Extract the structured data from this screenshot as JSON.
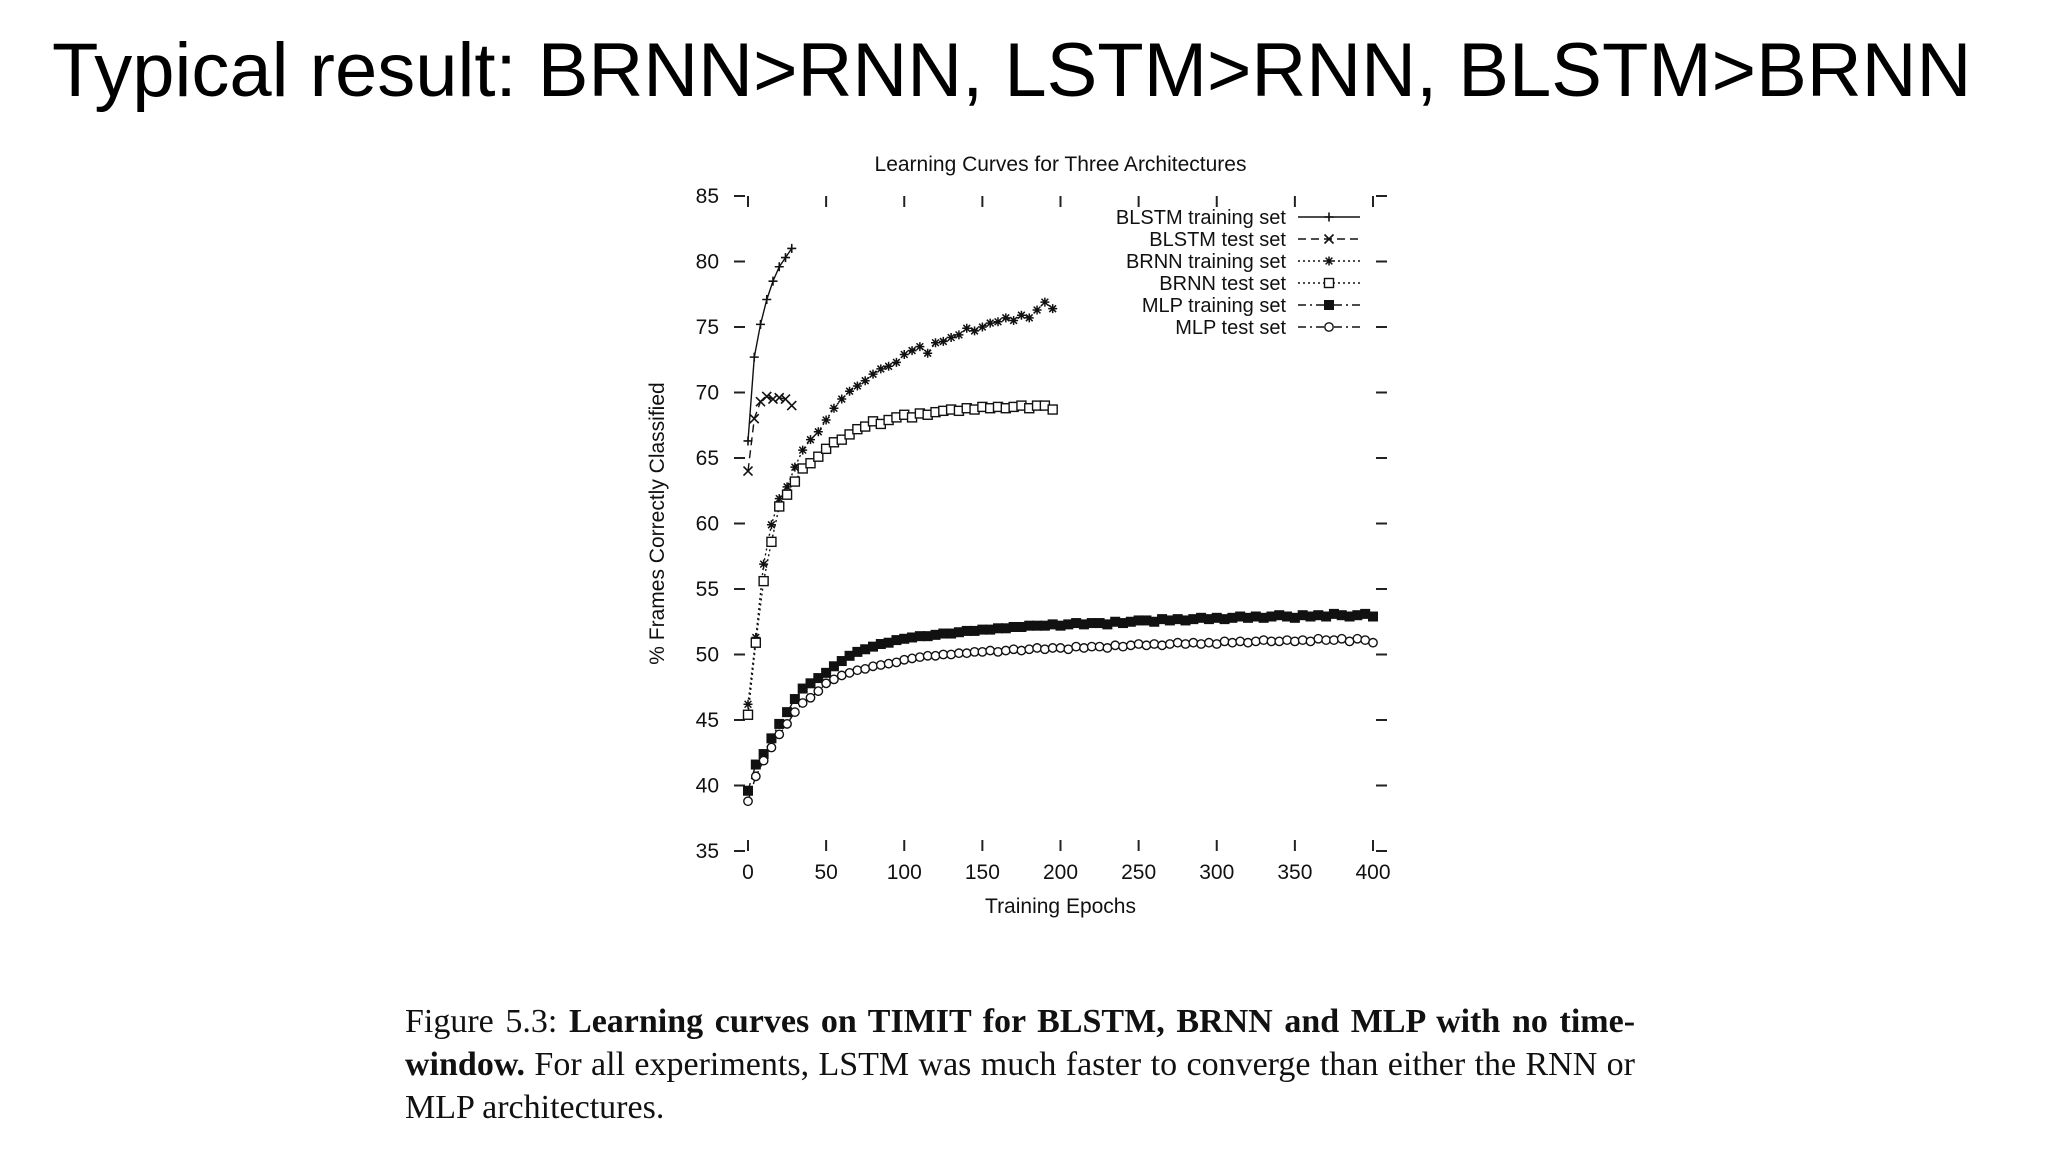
{
  "slide": {
    "title": "Typical result: BRNN>RNN, LSTM>RNN, BLSTM>BRNN"
  },
  "caption": {
    "figure_label": "Figure 5.3:",
    "bold_text": "Learning curves on TIMIT for BLSTM, BRNN and MLP with no time-window.",
    "body_text": "For all experiments, LSTM was much faster to converge than either the RNN or MLP architectures."
  },
  "chart_data": {
    "type": "line",
    "title": "Learning Curves for Three Architectures",
    "xlabel": "Training Epochs",
    "ylabel": "% Frames Correctly Classified",
    "xlim": [
      0,
      400
    ],
    "ylim": [
      35,
      85
    ],
    "xticks": [
      0,
      50,
      100,
      150,
      200,
      250,
      300,
      350,
      400
    ],
    "yticks": [
      35,
      40,
      45,
      50,
      55,
      60,
      65,
      70,
      75,
      80,
      85
    ],
    "grid": false,
    "legend_position": "top-right",
    "series": [
      {
        "name": "BLSTM training set",
        "marker": "plus",
        "line": "solid",
        "color": "#111111",
        "x": [
          0,
          4,
          8,
          12,
          16,
          20,
          24,
          28
        ],
        "y": [
          66.3,
          72.7,
          75.2,
          77.1,
          78.5,
          79.6,
          80.3,
          81.0
        ]
      },
      {
        "name": "BLSTM test set",
        "marker": "cross",
        "line": "dashed",
        "color": "#111111",
        "x": [
          0,
          4,
          8,
          12,
          16,
          20,
          24,
          28
        ],
        "y": [
          64.0,
          68.0,
          69.3,
          69.7,
          69.5,
          69.6,
          69.5,
          69.0
        ]
      },
      {
        "name": "BRNN training set",
        "marker": "star",
        "line": "dotted",
        "color": "#111111",
        "x": [
          0,
          5,
          10,
          15,
          20,
          25,
          30,
          35,
          40,
          45,
          50,
          55,
          60,
          65,
          70,
          75,
          80,
          85,
          90,
          95,
          100,
          105,
          110,
          115,
          120,
          125,
          130,
          135,
          140,
          145,
          150,
          155,
          160,
          165,
          170,
          175,
          180,
          185,
          190,
          195
        ],
        "y": [
          46.2,
          51.3,
          56.9,
          59.9,
          61.9,
          62.8,
          64.3,
          65.6,
          66.4,
          67.0,
          67.9,
          68.8,
          69.5,
          70.1,
          70.5,
          70.9,
          71.4,
          71.8,
          72.0,
          72.3,
          72.9,
          73.2,
          73.5,
          73.0,
          73.8,
          73.9,
          74.2,
          74.4,
          74.9,
          74.7,
          75.0,
          75.3,
          75.4,
          75.7,
          75.5,
          75.9,
          75.7,
          76.3,
          76.9,
          76.4
        ]
      },
      {
        "name": "BRNN test set",
        "marker": "box",
        "line": "dotted",
        "color": "#111111",
        "x": [
          0,
          5,
          10,
          15,
          20,
          25,
          30,
          35,
          40,
          45,
          50,
          55,
          60,
          65,
          70,
          75,
          80,
          85,
          90,
          95,
          100,
          105,
          110,
          115,
          120,
          125,
          130,
          135,
          140,
          145,
          150,
          155,
          160,
          165,
          170,
          175,
          180,
          185,
          190,
          195
        ],
        "y": [
          45.4,
          50.9,
          55.6,
          58.6,
          61.3,
          62.2,
          63.2,
          64.2,
          64.6,
          65.1,
          65.7,
          66.2,
          66.4,
          66.8,
          67.2,
          67.4,
          67.8,
          67.6,
          67.9,
          68.1,
          68.3,
          68.1,
          68.4,
          68.3,
          68.5,
          68.6,
          68.7,
          68.6,
          68.8,
          68.7,
          68.9,
          68.8,
          68.9,
          68.8,
          68.9,
          69.0,
          68.8,
          69.0,
          69.0,
          68.7
        ]
      },
      {
        "name": "MLP training set",
        "marker": "filled-square",
        "line": "dashdot",
        "color": "#111111",
        "x": [
          0,
          5,
          10,
          15,
          20,
          25,
          30,
          35,
          40,
          45,
          50,
          55,
          60,
          65,
          70,
          75,
          80,
          85,
          90,
          95,
          100,
          105,
          110,
          115,
          120,
          125,
          130,
          135,
          140,
          145,
          150,
          155,
          160,
          165,
          170,
          175,
          180,
          185,
          190,
          195,
          200,
          205,
          210,
          215,
          220,
          225,
          230,
          235,
          240,
          245,
          250,
          255,
          260,
          265,
          270,
          275,
          280,
          285,
          290,
          295,
          300,
          305,
          310,
          315,
          320,
          325,
          330,
          335,
          340,
          345,
          350,
          355,
          360,
          365,
          370,
          375,
          380,
          385,
          390,
          395,
          400
        ],
        "y": [
          39.6,
          41.6,
          42.4,
          43.6,
          44.7,
          45.6,
          46.6,
          47.4,
          47.8,
          48.2,
          48.6,
          49.1,
          49.5,
          49.9,
          50.2,
          50.4,
          50.6,
          50.8,
          50.9,
          51.1,
          51.2,
          51.3,
          51.4,
          51.4,
          51.5,
          51.6,
          51.6,
          51.7,
          51.8,
          51.8,
          51.9,
          51.9,
          52.0,
          52.0,
          52.1,
          52.1,
          52.2,
          52.2,
          52.2,
          52.3,
          52.2,
          52.3,
          52.4,
          52.3,
          52.4,
          52.4,
          52.3,
          52.5,
          52.4,
          52.5,
          52.6,
          52.6,
          52.5,
          52.7,
          52.6,
          52.7,
          52.6,
          52.7,
          52.8,
          52.7,
          52.8,
          52.7,
          52.8,
          52.9,
          52.8,
          52.9,
          52.8,
          52.9,
          53.0,
          52.9,
          52.8,
          53.0,
          52.9,
          53.0,
          52.9,
          53.1,
          53.0,
          52.9,
          53.0,
          53.1,
          52.9
        ]
      },
      {
        "name": "MLP test set",
        "marker": "circle",
        "line": "dashdot",
        "color": "#111111",
        "x": [
          0,
          5,
          10,
          15,
          20,
          25,
          30,
          35,
          40,
          45,
          50,
          55,
          60,
          65,
          70,
          75,
          80,
          85,
          90,
          95,
          100,
          105,
          110,
          115,
          120,
          125,
          130,
          135,
          140,
          145,
          150,
          155,
          160,
          165,
          170,
          175,
          180,
          185,
          190,
          195,
          200,
          205,
          210,
          215,
          220,
          225,
          230,
          235,
          240,
          245,
          250,
          255,
          260,
          265,
          270,
          275,
          280,
          285,
          290,
          295,
          300,
          305,
          310,
          315,
          320,
          325,
          330,
          335,
          340,
          345,
          350,
          355,
          360,
          365,
          370,
          375,
          380,
          385,
          390,
          395,
          400
        ],
        "y": [
          38.8,
          40.7,
          41.9,
          42.9,
          43.9,
          44.7,
          45.6,
          46.3,
          46.7,
          47.2,
          47.8,
          48.1,
          48.4,
          48.6,
          48.8,
          48.9,
          49.1,
          49.2,
          49.3,
          49.4,
          49.6,
          49.7,
          49.8,
          49.9,
          49.9,
          50.0,
          50.0,
          50.1,
          50.1,
          50.2,
          50.2,
          50.3,
          50.2,
          50.3,
          50.4,
          50.3,
          50.4,
          50.5,
          50.4,
          50.5,
          50.5,
          50.4,
          50.6,
          50.5,
          50.6,
          50.6,
          50.5,
          50.7,
          50.6,
          50.7,
          50.8,
          50.7,
          50.8,
          50.7,
          50.8,
          50.9,
          50.8,
          50.9,
          50.8,
          50.9,
          50.8,
          51.0,
          50.9,
          51.0,
          50.9,
          51.0,
          51.1,
          51.0,
          51.0,
          51.1,
          51.0,
          51.1,
          51.0,
          51.2,
          51.1,
          51.1,
          51.2,
          51.0,
          51.2,
          51.1,
          50.9
        ]
      }
    ]
  }
}
